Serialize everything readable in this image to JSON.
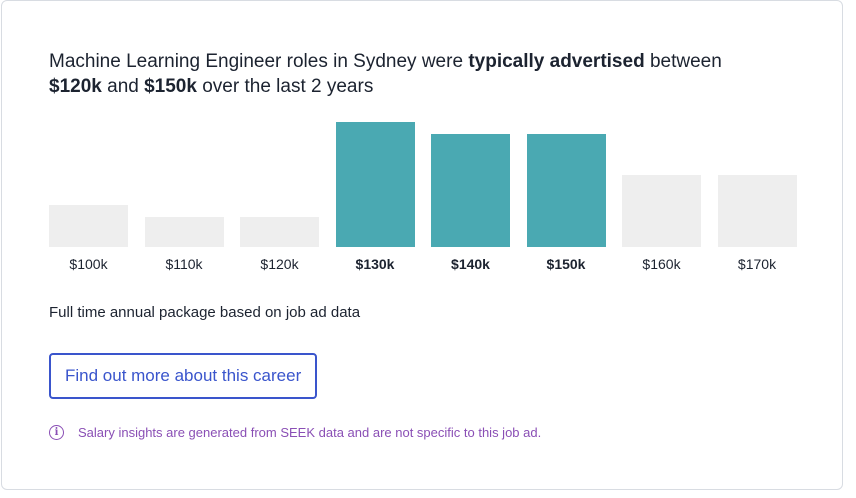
{
  "headline": {
    "part1": "Machine Learning Engineer roles in Sydney were ",
    "emphasis1": "typically advertised",
    "part2": " between ",
    "low": "$120k",
    "part3": " and ",
    "high": "$150k",
    "part4": " over the last 2 years"
  },
  "chart_data": {
    "type": "bar",
    "categories": [
      "$100k",
      "$110k",
      "$120k",
      "$130k",
      "$140k",
      "$150k",
      "$160k",
      "$170k"
    ],
    "values": [
      42,
      30,
      30,
      125,
      113,
      113,
      72,
      72
    ],
    "highlighted": [
      false,
      false,
      false,
      true,
      true,
      true,
      false,
      false
    ],
    "ylim": [
      0,
      125
    ],
    "colors": {
      "highlight": "#4aa9b2",
      "default": "#eeeeee"
    }
  },
  "note": "Full time annual package based on job ad data",
  "cta": {
    "label": "Find out more about this career"
  },
  "disclaimer": {
    "icon": "info-icon",
    "text": "Salary insights are generated from SEEK data and are not specific to this job ad."
  }
}
